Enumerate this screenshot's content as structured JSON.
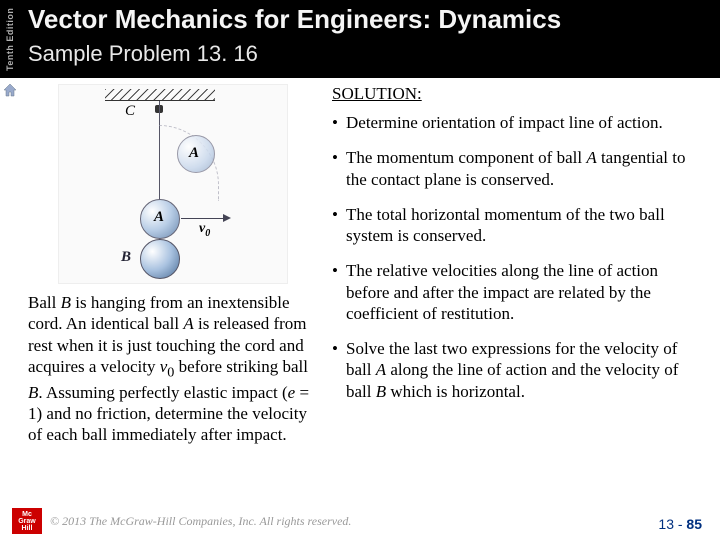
{
  "edition": "Tenth Edition",
  "header": {
    "title": "Vector Mechanics for Engineers: Dynamics",
    "subtitle": "Sample Problem 13. 16"
  },
  "figure": {
    "labelC": "C",
    "labelA_ghost": "A",
    "labelA": "A",
    "labelB": "B",
    "v0": "v",
    "v0_sub": "0"
  },
  "problem": {
    "text_html": "Ball <i>B</i> is hanging from an inextensible cord.  An identical ball <i>A</i> is released from rest when it is just touching the cord and acquires a velocity <i>v</i><sub>0</sub> before striking ball <i>B</i>.  Assuming perfectly elastic impact (<i>e</i> = 1) and no friction, determine the velocity of each ball immediately after impact."
  },
  "solution": {
    "header": "SOLUTION:",
    "bullets": [
      "Determine orientation of impact line of action.",
      "The momentum component of ball <i>A</i> tangential to the contact plane is conserved.",
      "The total horizontal momentum of the two ball system is conserved.",
      "The relative velocities along the line of action before and after the impact are related by the coefficient of restitution.",
      "Solve the last two expressions for the velocity of ball <i>A</i> along the line of action and the velocity of ball <i>B</i> which is horizontal."
    ]
  },
  "footer": {
    "logo_top": "Mc",
    "logo_mid": "Graw",
    "logo_bot": "Hill",
    "copyright": "© 2013 The McGraw-Hill Companies, Inc. All rights reserved.",
    "page_prefix": "13 - ",
    "page_num": "85"
  }
}
